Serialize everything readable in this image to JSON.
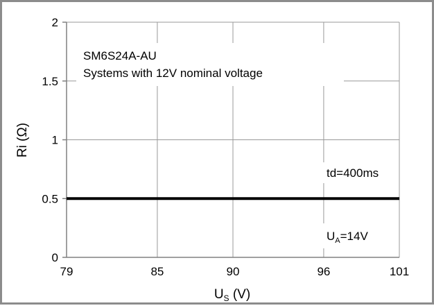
{
  "chart_data": {
    "type": "line",
    "title": "",
    "xlabel_main": "U",
    "xlabel_sub": "S",
    "xlabel_unit": " (V)",
    "ylabel": "Ri (Ω)",
    "xlim": [
      79,
      101
    ],
    "ylim": [
      0,
      2
    ],
    "x_ticks": [
      79,
      85,
      90,
      96,
      101
    ],
    "x_tick_labels": [
      "79",
      "85",
      "90",
      "96",
      "101"
    ],
    "y_ticks": [
      0,
      0.5,
      1,
      1.5,
      2
    ],
    "y_tick_labels": [
      "0",
      "0.5",
      "1",
      "1.5",
      "2"
    ],
    "grid": true,
    "series": [
      {
        "x": [
          79,
          101
        ],
        "y": [
          0.5,
          0.5
        ]
      }
    ],
    "annotations": {
      "part": "SM6S24A-AU",
      "system": "Systems with 12V nominal voltage",
      "td": "td=400ms",
      "ua_main": "U",
      "ua_sub": "A",
      "ua_value": "=14V"
    },
    "colors": {
      "frame": "#8c8c8c",
      "grid": "#999999",
      "axis": "#808080",
      "line": "#000000"
    }
  }
}
